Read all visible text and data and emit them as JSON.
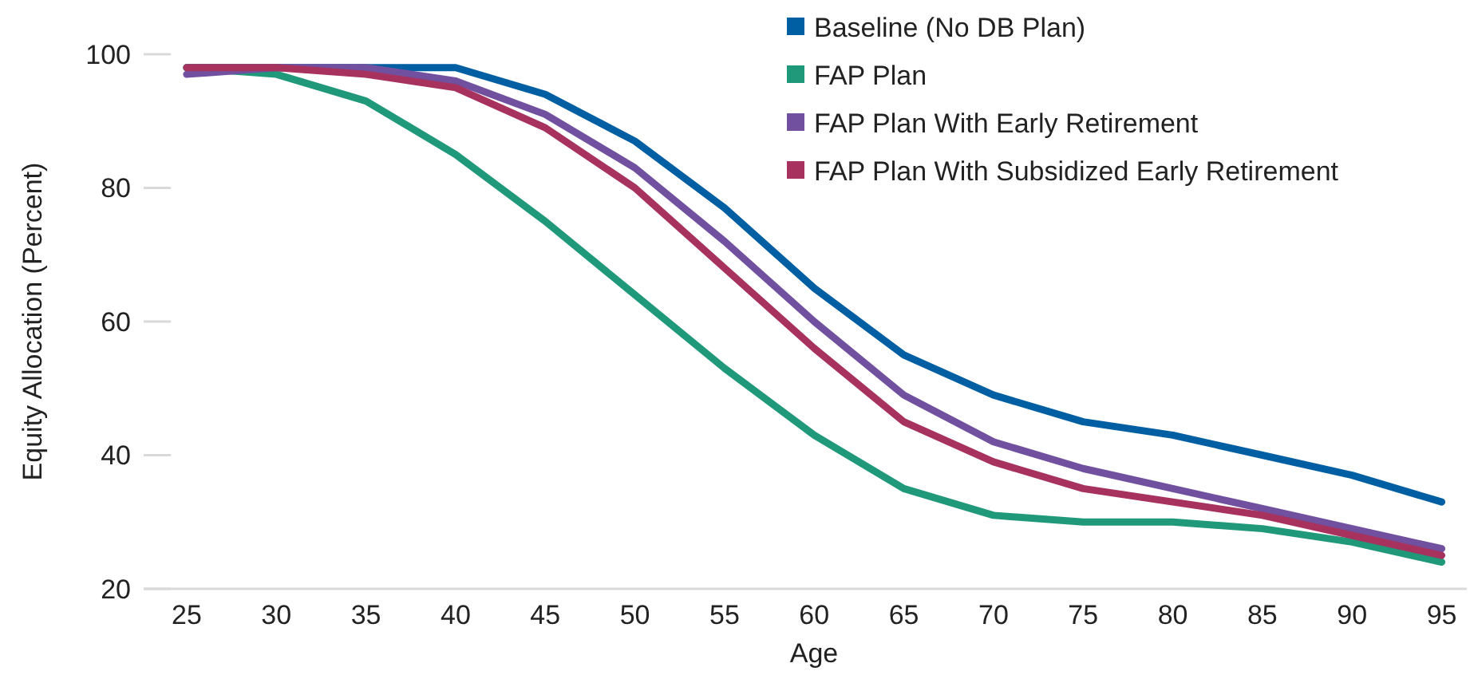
{
  "chart_data": {
    "type": "line",
    "xlabel": "Age",
    "ylabel": "Equity Allocation (Percent)",
    "x": [
      25,
      30,
      35,
      40,
      45,
      50,
      55,
      60,
      65,
      70,
      75,
      80,
      85,
      90,
      95
    ],
    "xlim": [
      22.6,
      96.4
    ],
    "xticks": [
      25,
      30,
      35,
      40,
      45,
      50,
      55,
      60,
      65,
      70,
      75,
      80,
      85,
      90,
      95
    ],
    "ylim": [
      20,
      100
    ],
    "yticks": [
      20,
      40,
      60,
      80,
      100
    ],
    "grid": false,
    "legend": "top right",
    "marker": "none",
    "line_style": "solid",
    "series": [
      {
        "name": "Baseline (No DB Plan)",
        "color": "#005ea2",
        "values": [
          98,
          98,
          98,
          98,
          94,
          87,
          77,
          65,
          55,
          49,
          45,
          43,
          40,
          37,
          33
        ]
      },
      {
        "name": "FAP Plan",
        "color": "#20987a",
        "values": [
          98,
          97,
          93,
          85,
          75,
          64,
          53,
          43,
          35,
          31,
          30,
          30,
          29,
          27,
          24
        ]
      },
      {
        "name": "FAP Plan With Early Retirement",
        "color": "#7150a0",
        "values": [
          97,
          98,
          98,
          96,
          91,
          83,
          72,
          60,
          49,
          42,
          38,
          35,
          32,
          29,
          26
        ]
      },
      {
        "name": "FAP Plan With Subsidized Early Retirement",
        "color": "#a8325e",
        "values": [
          98,
          98,
          97,
          95,
          89,
          80,
          68,
          56,
          45,
          39,
          35,
          33,
          31,
          28,
          25
        ]
      }
    ]
  }
}
